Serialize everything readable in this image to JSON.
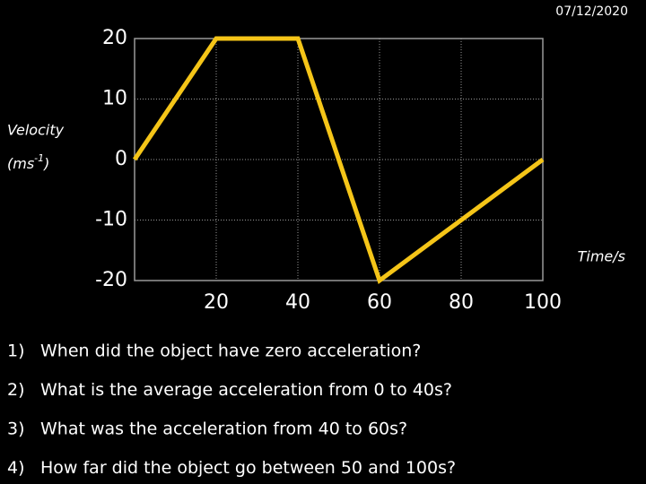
{
  "date": "07/12/2020",
  "chart_data": {
    "type": "line",
    "ylabel": "Velocity",
    "ylabel_unit": [
      "(ms",
      "-1",
      ")"
    ],
    "xlabel": "Time/s",
    "x": [
      0,
      20,
      40,
      60,
      100
    ],
    "series": [
      {
        "color": "#f5c518",
        "values": [
          0,
          20,
          20,
          -20,
          0
        ]
      }
    ],
    "xlim": [
      0,
      100
    ],
    "ylim": [
      -20,
      20
    ],
    "xticks": [
      20,
      40,
      60,
      80,
      100
    ],
    "yticks": [
      20,
      10,
      0,
      -10,
      -20
    ],
    "grid": true
  },
  "questions": [
    {
      "number": "1)",
      "text": "When did the object have zero acceleration?"
    },
    {
      "number": "2)",
      "text": "What is the average acceleration from 0 to 40s?"
    },
    {
      "number": "3)",
      "text": "What was the acceleration from 40 to 60s?"
    },
    {
      "number": "4)",
      "text": "How far did the object go between 50 and 100s?"
    }
  ]
}
